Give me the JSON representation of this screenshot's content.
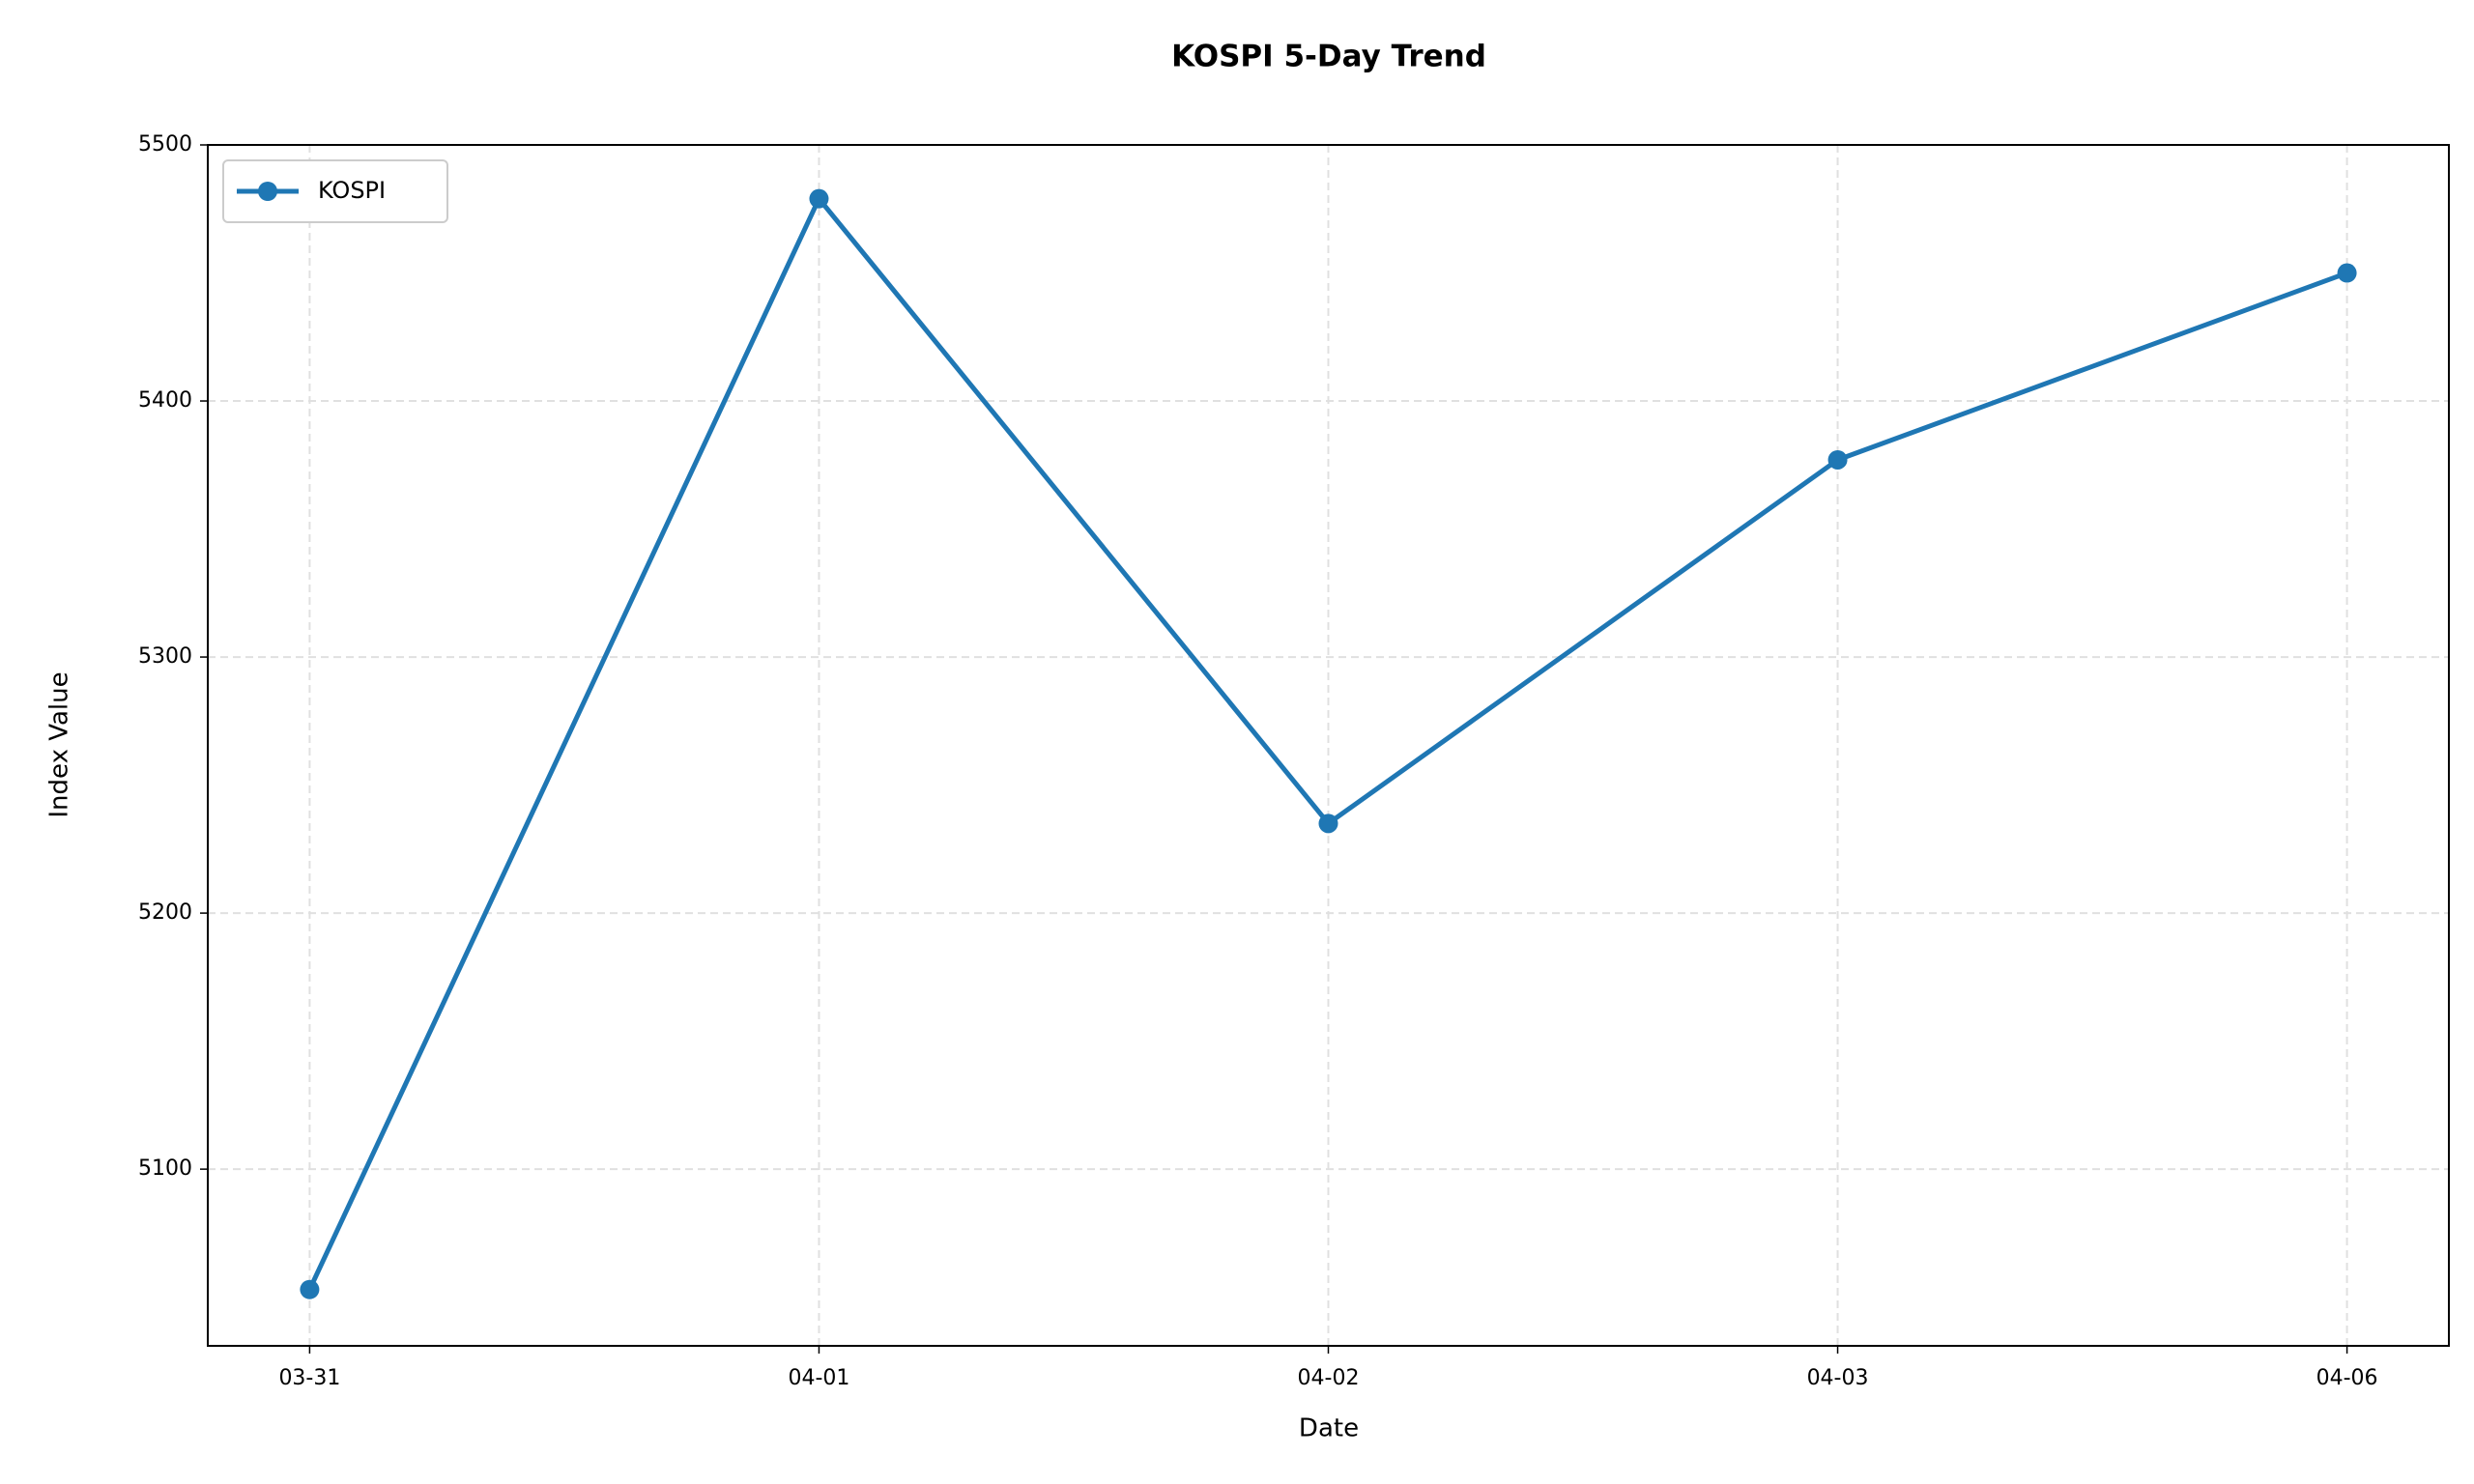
{
  "chart_data": {
    "type": "line",
    "title": "KOSPI 5-Day Trend",
    "x_label": "Date",
    "y_label": "Index Value",
    "categories": [
      "03-31",
      "04-01",
      "04-02",
      "04-03",
      "04-06"
    ],
    "series": [
      {
        "name": "KOSPI",
        "color": "#1f77b4",
        "values": [
          5053,
          5479,
          5235,
          5377,
          5450
        ]
      }
    ],
    "ylim": [
      5031,
      5500
    ],
    "yticks": [
      5100,
      5200,
      5300,
      5400,
      5500
    ],
    "grid": true,
    "legend": "upper left"
  }
}
